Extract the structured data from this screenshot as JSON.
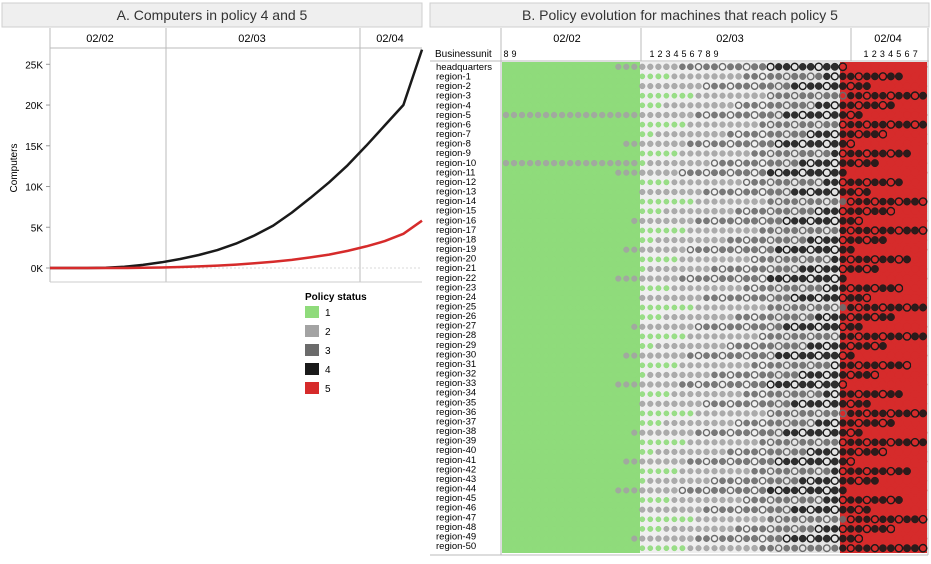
{
  "panel_a": {
    "title": "A. Computers in policy 4 and 5",
    "periods": [
      "02/02",
      "02/03",
      "02/04"
    ],
    "y_label": "Computers",
    "y_ticks": [
      "0K",
      "5K",
      "10K",
      "15K",
      "20K",
      "25K"
    ]
  },
  "legend": {
    "title": "Policy status",
    "items": [
      {
        "label": "1",
        "color": "#8fdb7b"
      },
      {
        "label": "2",
        "color": "#a3a3a3"
      },
      {
        "label": "3",
        "color": "#6b6b6b"
      },
      {
        "label": "4",
        "color": "#1a1a1a"
      },
      {
        "label": "5",
        "color": "#d62b2b"
      }
    ]
  },
  "panel_b": {
    "title": "B. Policy evolution for machines that reach policy 5",
    "row_header": "Businessunit",
    "periods": [
      "02/02",
      "02/03",
      "02/04"
    ],
    "sub_ticks": {
      "p1": [
        "8",
        "9"
      ],
      "p2": [
        "1",
        "2",
        "3",
        "4",
        "5",
        "6",
        "7",
        "8",
        "9"
      ],
      "p3": [
        "1",
        "2",
        "3",
        "4",
        "5",
        "6",
        "7"
      ]
    },
    "rows": [
      "headquarters",
      "region-1",
      "region-2",
      "region-3",
      "region-4",
      "region-5",
      "region-6",
      "region-7",
      "region-8",
      "region-9",
      "region-10",
      "region-11",
      "region-12",
      "region-13",
      "region-14",
      "region-15",
      "region-16",
      "region-17",
      "region-18",
      "region-19",
      "region-20",
      "region-21",
      "region-22",
      "region-23",
      "region-24",
      "region-25",
      "region-26",
      "region-27",
      "region-28",
      "region-29",
      "region-30",
      "region-31",
      "region-32",
      "region-33",
      "region-34",
      "region-35",
      "region-36",
      "region-37",
      "region-38",
      "region-39",
      "region-40",
      "region-41",
      "region-42",
      "region-43",
      "region-44",
      "region-45",
      "region-46",
      "region-47",
      "region-48",
      "region-49",
      "region-50"
    ]
  },
  "chart_data": [
    {
      "type": "line",
      "title": "A. Computers in policy 4 and 5",
      "xlabel": "",
      "ylabel": "Computers",
      "x_periods": [
        "02/02",
        "02/03",
        "02/04"
      ],
      "x": [
        0,
        0.25,
        0.5,
        0.75,
        1.0,
        1.25,
        1.5,
        1.75,
        2.0,
        2.25,
        2.5,
        2.75,
        3.0,
        3.25,
        3.5,
        3.75,
        4.0,
        4.25,
        4.5,
        4.75,
        5.0
      ],
      "ylim": [
        0,
        27000
      ],
      "grid": false,
      "legend": "below",
      "series": [
        {
          "name": "4",
          "color": "#1a1a1a",
          "values": [
            0,
            0,
            0,
            40,
            150,
            380,
            700,
            1100,
            1600,
            2200,
            3000,
            4000,
            5200,
            6800,
            8600,
            10500,
            12600,
            15000,
            17500,
            20000,
            26800
          ]
        },
        {
          "name": "5",
          "color": "#d62b2b",
          "values": [
            0,
            0,
            0,
            0,
            0,
            20,
            60,
            120,
            200,
            300,
            420,
            580,
            770,
            1000,
            1300,
            1650,
            2100,
            2650,
            3300,
            4200,
            5800
          ]
        }
      ]
    },
    {
      "type": "scatter",
      "title": "B. Policy evolution for machines that reach policy 5",
      "ylabel": "Businessunit",
      "x_periods": [
        "02/02",
        "02/03",
        "02/04"
      ],
      "x_ticks": [
        "8",
        "9",
        "1",
        "2",
        "3",
        "4",
        "5",
        "6",
        "7",
        "8",
        "9",
        "1",
        "2",
        "3",
        "4",
        "5",
        "6",
        "7"
      ],
      "categories": [
        "headquarters",
        "region-1",
        "region-2",
        "region-3",
        "region-4",
        "region-5",
        "region-6",
        "region-7",
        "region-8",
        "region-9",
        "region-10",
        "region-11",
        "region-12",
        "region-13",
        "region-14",
        "region-15",
        "region-16",
        "region-17",
        "region-18",
        "region-19",
        "region-20",
        "region-21",
        "region-22",
        "region-23",
        "region-24",
        "region-25",
        "region-26",
        "region-27",
        "region-28",
        "region-29",
        "region-30",
        "region-31",
        "region-32",
        "region-33",
        "region-34",
        "region-35",
        "region-36",
        "region-37",
        "region-38",
        "region-39",
        "region-40",
        "region-41",
        "region-42",
        "region-43",
        "region-44",
        "region-45",
        "region-46",
        "region-47",
        "region-48",
        "region-49",
        "region-50"
      ],
      "policy_progression": [
        "1",
        "2",
        "3",
        "4",
        "5"
      ],
      "legend": "shared with panel A"
    }
  ]
}
